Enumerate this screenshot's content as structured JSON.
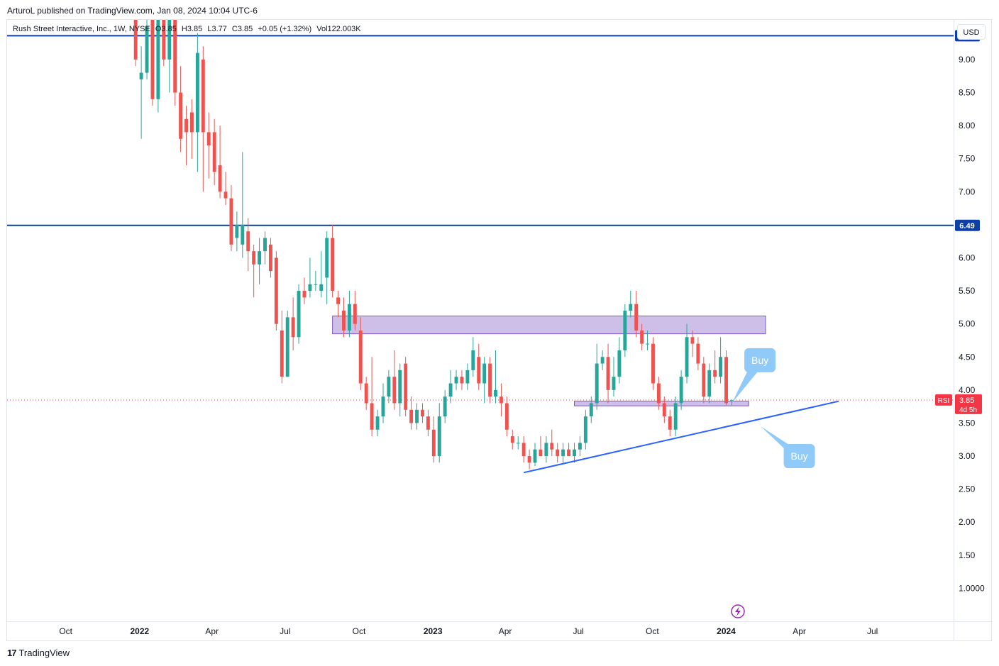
{
  "header": {
    "published": "ArturoL published on TradingView.com, Jan 08, 2024 10:04 UTC-6"
  },
  "legend": {
    "symbol": "Rush Street Interactive, Inc., 1W, NYSE",
    "open": "O3.85",
    "high": "H3.85",
    "low": "L3.77",
    "close": "C3.85",
    "change": "+0.05 (+1.32%)",
    "volume": "Vol122.003K"
  },
  "currency": "USD",
  "footer": {
    "brand": "TradingView"
  },
  "colors": {
    "up": "#26a69a",
    "down": "#ef5350",
    "level_line": "#0d3fa6",
    "trendline": "#2962ff",
    "zone_fill": "#b39ddb",
    "zone_border": "#7e57c2",
    "callout": "#90caf9",
    "price_tag": "#f23645"
  },
  "chart_data": {
    "type": "candlestick",
    "title": "",
    "interval": "1W",
    "ylim": [
      0.5,
      9.6
    ],
    "y_ticks": [
      "9.00",
      "8.50",
      "8.00",
      "7.50",
      "7.00",
      "6.00",
      "5.50",
      "5.00",
      "4.50",
      "4.00",
      "3.50",
      "3.00",
      "2.50",
      "2.00",
      "1.50",
      "1.0000"
    ],
    "y_tick_values": [
      9.0,
      8.5,
      8.0,
      7.5,
      7.0,
      6.0,
      5.5,
      5.0,
      4.5,
      4.0,
      3.5,
      3.0,
      2.5,
      2.0,
      1.5,
      1.0
    ],
    "x_ticks": [
      "Oct",
      "2022",
      "Apr",
      "Jul",
      "Oct",
      "2023",
      "Apr",
      "Jul",
      "Oct",
      "2024",
      "Apr",
      "Jul"
    ],
    "x_tick_dates": [
      "2021-10-01",
      "2022-01-01",
      "2022-04-01",
      "2022-07-01",
      "2022-10-01",
      "2023-01-01",
      "2023-04-01",
      "2023-07-01",
      "2023-10-01",
      "2024-01-01",
      "2024-04-01",
      "2024-07-01"
    ],
    "x_range": [
      "2021-07-20",
      "2024-10-10"
    ],
    "horizontal_levels": [
      {
        "value": 9.36,
        "label": "9.36"
      },
      {
        "value": 6.49,
        "label": "6.49"
      }
    ],
    "zones": [
      {
        "from": "2022-08-29",
        "to": "2024-02-19",
        "low": 4.85,
        "high": 5.12
      },
      {
        "from": "2023-06-26",
        "to": "2024-01-29",
        "low": 3.76,
        "high": 3.83
      }
    ],
    "trendline": {
      "from_date": "2023-04-24",
      "from_value": 2.75,
      "to_date": "2024-05-20",
      "to_value": 3.83
    },
    "last_price": {
      "value": 3.85,
      "label": "3.85",
      "countdown": "4d 5h",
      "indicator": "RSI"
    },
    "annotations": [
      {
        "text": "Buy",
        "date": "2024-02-12",
        "value": 4.45,
        "pointer_date": "2024-01-08",
        "pointer_value": 3.8
      },
      {
        "text": "Buy",
        "date": "2024-04-01",
        "value": 3.0,
        "pointer_date": "2024-02-13",
        "pointer_value": 3.45
      }
    ],
    "candles": [
      {
        "date": "2021-12-27",
        "o": 9.7,
        "h": 9.8,
        "l": 8.9,
        "c": 9.0
      },
      {
        "date": "2022-01-03",
        "o": 8.7,
        "h": 9.2,
        "l": 7.8,
        "c": 8.8
      },
      {
        "date": "2022-01-10",
        "o": 8.8,
        "h": 9.6,
        "l": 8.7,
        "c": 9.5
      },
      {
        "date": "2022-01-17",
        "o": 9.6,
        "h": 9.9,
        "l": 8.3,
        "c": 8.4
      },
      {
        "date": "2022-01-24",
        "o": 8.4,
        "h": 9.8,
        "l": 8.2,
        "c": 9.7
      },
      {
        "date": "2022-01-31",
        "o": 9.7,
        "h": 9.9,
        "l": 8.9,
        "c": 9.0
      },
      {
        "date": "2022-02-07",
        "o": 9.0,
        "h": 9.8,
        "l": 8.5,
        "c": 9.7
      },
      {
        "date": "2022-02-14",
        "o": 9.8,
        "h": 9.9,
        "l": 8.3,
        "c": 8.5
      },
      {
        "date": "2022-02-21",
        "o": 8.5,
        "h": 8.9,
        "l": 7.6,
        "c": 7.8
      },
      {
        "date": "2022-02-28",
        "o": 8.1,
        "h": 8.3,
        "l": 7.4,
        "c": 7.9
      },
      {
        "date": "2022-03-07",
        "o": 8.2,
        "h": 8.4,
        "l": 7.5,
        "c": 7.9
      },
      {
        "date": "2022-03-14",
        "o": 7.9,
        "h": 9.4,
        "l": 7.3,
        "c": 9.1
      },
      {
        "date": "2022-03-21",
        "o": 9.0,
        "h": 9.2,
        "l": 7.0,
        "c": 7.9
      },
      {
        "date": "2022-03-28",
        "o": 7.9,
        "h": 8.2,
        "l": 7.2,
        "c": 7.7
      },
      {
        "date": "2022-04-04",
        "o": 7.9,
        "h": 8.1,
        "l": 7.1,
        "c": 7.3
      },
      {
        "date": "2022-04-11",
        "o": 7.4,
        "h": 8.0,
        "l": 6.9,
        "c": 7.0
      },
      {
        "date": "2022-04-18",
        "o": 7.0,
        "h": 7.3,
        "l": 6.8,
        "c": 6.9
      },
      {
        "date": "2022-04-25",
        "o": 6.9,
        "h": 7.1,
        "l": 6.1,
        "c": 6.2
      },
      {
        "date": "2022-05-02",
        "o": 6.3,
        "h": 6.7,
        "l": 6.1,
        "c": 6.5
      },
      {
        "date": "2022-05-09",
        "o": 6.2,
        "h": 7.6,
        "l": 6.0,
        "c": 6.5
      },
      {
        "date": "2022-05-16",
        "o": 6.4,
        "h": 6.6,
        "l": 5.8,
        "c": 6.1
      },
      {
        "date": "2022-05-23",
        "o": 6.1,
        "h": 6.2,
        "l": 5.4,
        "c": 5.9
      },
      {
        "date": "2022-05-30",
        "o": 5.9,
        "h": 6.3,
        "l": 5.6,
        "c": 6.1
      },
      {
        "date": "2022-06-06",
        "o": 6.1,
        "h": 6.4,
        "l": 5.9,
        "c": 6.3
      },
      {
        "date": "2022-06-13",
        "o": 6.2,
        "h": 6.3,
        "l": 5.7,
        "c": 5.8
      },
      {
        "date": "2022-06-20",
        "o": 6.0,
        "h": 6.1,
        "l": 4.9,
        "c": 5.0
      },
      {
        "date": "2022-06-27",
        "o": 4.9,
        "h": 5.2,
        "l": 4.1,
        "c": 4.2
      },
      {
        "date": "2022-07-04",
        "o": 4.2,
        "h": 5.2,
        "l": 4.2,
        "c": 5.1
      },
      {
        "date": "2022-07-11",
        "o": 5.1,
        "h": 5.4,
        "l": 4.6,
        "c": 4.8
      },
      {
        "date": "2022-07-18",
        "o": 4.8,
        "h": 5.6,
        "l": 4.7,
        "c": 5.5
      },
      {
        "date": "2022-07-25",
        "o": 5.5,
        "h": 5.7,
        "l": 5.3,
        "c": 5.4
      },
      {
        "date": "2022-08-01",
        "o": 5.5,
        "h": 6.0,
        "l": 5.4,
        "c": 5.6
      },
      {
        "date": "2022-08-08",
        "o": 5.6,
        "h": 5.8,
        "l": 5.5,
        "c": 5.6
      },
      {
        "date": "2022-08-15",
        "o": 5.5,
        "h": 6.1,
        "l": 5.4,
        "c": 5.6
      },
      {
        "date": "2022-08-22",
        "o": 5.7,
        "h": 6.4,
        "l": 5.3,
        "c": 6.3
      },
      {
        "date": "2022-08-29",
        "o": 6.3,
        "h": 6.5,
        "l": 5.4,
        "c": 5.5
      },
      {
        "date": "2022-09-05",
        "o": 5.4,
        "h": 5.5,
        "l": 5.1,
        "c": 5.3
      },
      {
        "date": "2022-09-12",
        "o": 5.2,
        "h": 5.4,
        "l": 4.8,
        "c": 4.9
      },
      {
        "date": "2022-09-19",
        "o": 4.9,
        "h": 5.5,
        "l": 4.8,
        "c": 5.3
      },
      {
        "date": "2022-09-26",
        "o": 5.3,
        "h": 5.5,
        "l": 4.9,
        "c": 5.0
      },
      {
        "date": "2022-10-03",
        "o": 4.9,
        "h": 5.1,
        "l": 4.0,
        "c": 4.1
      },
      {
        "date": "2022-10-10",
        "o": 4.1,
        "h": 4.2,
        "l": 3.7,
        "c": 3.8
      },
      {
        "date": "2022-10-17",
        "o": 3.8,
        "h": 4.5,
        "l": 3.3,
        "c": 3.4
      },
      {
        "date": "2022-10-24",
        "o": 3.4,
        "h": 3.7,
        "l": 3.3,
        "c": 3.6
      },
      {
        "date": "2022-10-31",
        "o": 3.6,
        "h": 4.1,
        "l": 3.5,
        "c": 3.9
      },
      {
        "date": "2022-11-07",
        "o": 3.9,
        "h": 4.3,
        "l": 3.8,
        "c": 4.2
      },
      {
        "date": "2022-11-14",
        "o": 4.2,
        "h": 4.6,
        "l": 3.7,
        "c": 3.8
      },
      {
        "date": "2022-11-21",
        "o": 3.8,
        "h": 4.4,
        "l": 3.6,
        "c": 4.3
      },
      {
        "date": "2022-11-28",
        "o": 4.4,
        "h": 4.5,
        "l": 3.6,
        "c": 3.7
      },
      {
        "date": "2022-12-05",
        "o": 3.7,
        "h": 3.9,
        "l": 3.4,
        "c": 3.5
      },
      {
        "date": "2022-12-12",
        "o": 3.5,
        "h": 3.8,
        "l": 3.4,
        "c": 3.7
      },
      {
        "date": "2022-12-19",
        "o": 3.7,
        "h": 3.8,
        "l": 3.5,
        "c": 3.6
      },
      {
        "date": "2022-12-26",
        "o": 3.6,
        "h": 3.7,
        "l": 3.3,
        "c": 3.4
      },
      {
        "date": "2023-01-02",
        "o": 3.4,
        "h": 3.6,
        "l": 2.9,
        "c": 3.0
      },
      {
        "date": "2023-01-09",
        "o": 3.0,
        "h": 3.8,
        "l": 2.9,
        "c": 3.6
      },
      {
        "date": "2023-01-16",
        "o": 3.6,
        "h": 4.0,
        "l": 3.5,
        "c": 3.9
      },
      {
        "date": "2023-01-23",
        "o": 3.9,
        "h": 4.3,
        "l": 3.8,
        "c": 4.1
      },
      {
        "date": "2023-01-30",
        "o": 4.1,
        "h": 4.3,
        "l": 4.0,
        "c": 4.2
      },
      {
        "date": "2023-02-06",
        "o": 4.2,
        "h": 4.3,
        "l": 4.0,
        "c": 4.1
      },
      {
        "date": "2023-02-13",
        "o": 4.1,
        "h": 4.4,
        "l": 4.0,
        "c": 4.3
      },
      {
        "date": "2023-02-20",
        "o": 4.3,
        "h": 4.8,
        "l": 4.2,
        "c": 4.6
      },
      {
        "date": "2023-02-27",
        "o": 4.5,
        "h": 4.7,
        "l": 4.0,
        "c": 4.1
      },
      {
        "date": "2023-03-06",
        "o": 4.1,
        "h": 4.5,
        "l": 3.8,
        "c": 4.4
      },
      {
        "date": "2023-03-13",
        "o": 4.4,
        "h": 4.5,
        "l": 3.8,
        "c": 3.9
      },
      {
        "date": "2023-03-20",
        "o": 3.9,
        "h": 4.6,
        "l": 3.8,
        "c": 4.0
      },
      {
        "date": "2023-03-27",
        "o": 3.9,
        "h": 4.1,
        "l": 3.6,
        "c": 3.8
      },
      {
        "date": "2023-04-03",
        "o": 3.8,
        "h": 3.9,
        "l": 3.3,
        "c": 3.4
      },
      {
        "date": "2023-04-10",
        "o": 3.3,
        "h": 3.4,
        "l": 3.1,
        "c": 3.2
      },
      {
        "date": "2023-04-17",
        "o": 3.2,
        "h": 3.3,
        "l": 3.1,
        "c": 3.2
      },
      {
        "date": "2023-04-24",
        "o": 3.2,
        "h": 3.3,
        "l": 2.9,
        "c": 3.0
      },
      {
        "date": "2023-05-01",
        "o": 3.0,
        "h": 3.1,
        "l": 2.8,
        "c": 2.9
      },
      {
        "date": "2023-05-08",
        "o": 2.9,
        "h": 3.2,
        "l": 2.85,
        "c": 3.1
      },
      {
        "date": "2023-05-15",
        "o": 3.1,
        "h": 3.3,
        "l": 3.0,
        "c": 3.0
      },
      {
        "date": "2023-05-22",
        "o": 3.0,
        "h": 3.3,
        "l": 2.9,
        "c": 3.2
      },
      {
        "date": "2023-05-29",
        "o": 3.2,
        "h": 3.4,
        "l": 3.0,
        "c": 3.1
      },
      {
        "date": "2023-06-05",
        "o": 3.1,
        "h": 3.2,
        "l": 2.9,
        "c": 3.0
      },
      {
        "date": "2023-06-12",
        "o": 3.0,
        "h": 3.2,
        "l": 2.9,
        "c": 3.1
      },
      {
        "date": "2023-06-19",
        "o": 3.1,
        "h": 3.2,
        "l": 3.0,
        "c": 3.0
      },
      {
        "date": "2023-06-26",
        "o": 3.0,
        "h": 3.2,
        "l": 2.9,
        "c": 3.1
      },
      {
        "date": "2023-07-03",
        "o": 3.1,
        "h": 3.3,
        "l": 3.0,
        "c": 3.2
      },
      {
        "date": "2023-07-10",
        "o": 3.2,
        "h": 3.7,
        "l": 3.1,
        "c": 3.6
      },
      {
        "date": "2023-07-17",
        "o": 3.6,
        "h": 3.9,
        "l": 3.5,
        "c": 3.8
      },
      {
        "date": "2023-07-24",
        "o": 3.8,
        "h": 4.7,
        "l": 3.7,
        "c": 4.4
      },
      {
        "date": "2023-07-31",
        "o": 4.4,
        "h": 4.6,
        "l": 4.3,
        "c": 4.5
      },
      {
        "date": "2023-08-07",
        "o": 4.5,
        "h": 4.7,
        "l": 3.8,
        "c": 4.0
      },
      {
        "date": "2023-08-14",
        "o": 4.0,
        "h": 4.5,
        "l": 3.9,
        "c": 4.2
      },
      {
        "date": "2023-08-21",
        "o": 4.2,
        "h": 4.8,
        "l": 4.1,
        "c": 4.6
      },
      {
        "date": "2023-08-28",
        "o": 4.6,
        "h": 5.3,
        "l": 4.5,
        "c": 5.2
      },
      {
        "date": "2023-09-04",
        "o": 5.2,
        "h": 5.5,
        "l": 5.1,
        "c": 5.3
      },
      {
        "date": "2023-09-11",
        "o": 5.3,
        "h": 5.5,
        "l": 4.8,
        "c": 4.9
      },
      {
        "date": "2023-09-18",
        "o": 4.9,
        "h": 5.0,
        "l": 4.6,
        "c": 4.7
      },
      {
        "date": "2023-09-25",
        "o": 4.7,
        "h": 4.9,
        "l": 4.6,
        "c": 4.7
      },
      {
        "date": "2023-10-02",
        "o": 4.7,
        "h": 4.8,
        "l": 4.0,
        "c": 4.1
      },
      {
        "date": "2023-10-09",
        "o": 4.1,
        "h": 4.2,
        "l": 3.7,
        "c": 3.8
      },
      {
        "date": "2023-10-16",
        "o": 3.8,
        "h": 3.9,
        "l": 3.5,
        "c": 3.6
      },
      {
        "date": "2023-10-23",
        "o": 3.6,
        "h": 3.7,
        "l": 3.3,
        "c": 3.4
      },
      {
        "date": "2023-10-30",
        "o": 3.4,
        "h": 3.9,
        "l": 3.3,
        "c": 3.8
      },
      {
        "date": "2023-11-06",
        "o": 3.8,
        "h": 4.3,
        "l": 3.7,
        "c": 4.2
      },
      {
        "date": "2023-11-13",
        "o": 4.2,
        "h": 5.0,
        "l": 4.1,
        "c": 4.8
      },
      {
        "date": "2023-11-20",
        "o": 4.8,
        "h": 4.9,
        "l": 4.5,
        "c": 4.7
      },
      {
        "date": "2023-11-27",
        "o": 4.7,
        "h": 4.8,
        "l": 4.3,
        "c": 4.4
      },
      {
        "date": "2023-12-04",
        "o": 4.4,
        "h": 4.5,
        "l": 3.8,
        "c": 3.9
      },
      {
        "date": "2023-12-11",
        "o": 3.9,
        "h": 4.4,
        "l": 3.8,
        "c": 4.3
      },
      {
        "date": "2023-12-18",
        "o": 4.3,
        "h": 4.6,
        "l": 4.1,
        "c": 4.2
      },
      {
        "date": "2023-12-25",
        "o": 4.2,
        "h": 4.8,
        "l": 4.1,
        "c": 4.5
      },
      {
        "date": "2024-01-01",
        "o": 4.5,
        "h": 4.6,
        "l": 3.77,
        "c": 3.8
      },
      {
        "date": "2024-01-08",
        "o": 3.85,
        "h": 3.85,
        "l": 3.77,
        "c": 3.85
      }
    ]
  }
}
